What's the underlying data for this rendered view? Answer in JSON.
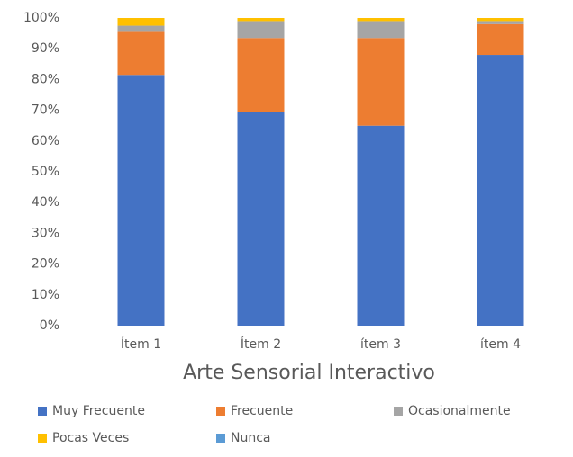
{
  "chart_data": {
    "type": "stacked_bar",
    "title": "Arte Sensorial Interactivo",
    "categories": [
      "Ítem 1",
      "Ítem 2",
      "ítem 3",
      "ítem 4"
    ],
    "series": [
      {
        "name": "Muy Frecuente",
        "color": "#4472c4",
        "values": [
          81.5,
          69.5,
          65,
          88
        ]
      },
      {
        "name": "Frecuente",
        "color": "#ed7d31",
        "values": [
          14,
          24,
          28.5,
          10
        ]
      },
      {
        "name": "Ocasionalmente",
        "color": "#a5a5a5",
        "values": [
          2,
          5.5,
          5.5,
          1
        ]
      },
      {
        "name": "Pocas Veces",
        "color": "#ffc000",
        "values": [
          2.5,
          1,
          1,
          1
        ]
      },
      {
        "name": "Nunca",
        "color": "#5b9bd5",
        "values": [
          0,
          0,
          0,
          0
        ]
      }
    ],
    "ylim": [
      0,
      100
    ],
    "yticks": [
      {
        "value": 0,
        "label": "0%"
      },
      {
        "value": 10,
        "label": "10%"
      },
      {
        "value": 20,
        "label": "20%"
      },
      {
        "value": 30,
        "label": "30%"
      },
      {
        "value": 40,
        "label": "40%"
      },
      {
        "value": 50,
        "label": "50%"
      },
      {
        "value": 60,
        "label": "60%"
      },
      {
        "value": 70,
        "label": "70%"
      },
      {
        "value": 80,
        "label": "80%"
      },
      {
        "value": 90,
        "label": "90%"
      },
      {
        "value": 100,
        "label": "100%"
      }
    ],
    "grid": false,
    "legend": "bottom"
  }
}
